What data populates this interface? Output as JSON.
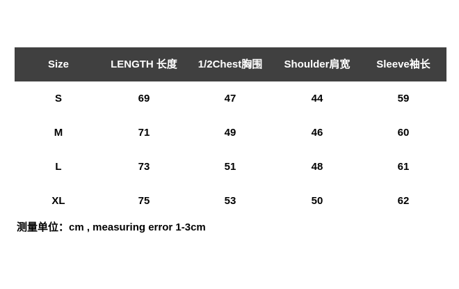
{
  "table": {
    "headers": [
      "Size",
      "LENGTH 长度",
      "1/2Chest胸围",
      "Shoulder肩宽",
      "Sleeve袖长"
    ],
    "rows": [
      [
        "S",
        "69",
        "47",
        "44",
        "59"
      ],
      [
        "M",
        "71",
        "49",
        "46",
        "60"
      ],
      [
        "L",
        "73",
        "51",
        "48",
        "61"
      ],
      [
        "XL",
        "75",
        "53",
        "50",
        "62"
      ]
    ],
    "header_bg": "#404040"
  },
  "note": "测量单位：cm , measuring error 1-3cm"
}
